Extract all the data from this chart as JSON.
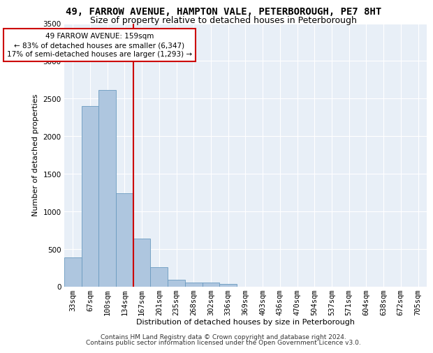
{
  "title_line1": "49, FARROW AVENUE, HAMPTON VALE, PETERBOROUGH, PE7 8HT",
  "title_line2": "Size of property relative to detached houses in Peterborough",
  "xlabel": "Distribution of detached houses by size in Peterborough",
  "ylabel": "Number of detached properties",
  "categories": [
    "33sqm",
    "67sqm",
    "100sqm",
    "134sqm",
    "167sqm",
    "201sqm",
    "235sqm",
    "268sqm",
    "302sqm",
    "336sqm",
    "369sqm",
    "403sqm",
    "436sqm",
    "470sqm",
    "504sqm",
    "537sqm",
    "571sqm",
    "604sqm",
    "638sqm",
    "672sqm",
    "705sqm"
  ],
  "values": [
    390,
    2400,
    2610,
    1240,
    640,
    255,
    95,
    60,
    55,
    35,
    0,
    0,
    0,
    0,
    0,
    0,
    0,
    0,
    0,
    0,
    0
  ],
  "bar_color": "#aec6df",
  "bar_edge_color": "#6a9abf",
  "vline_color": "#cc0000",
  "vline_pos": 3.5,
  "ylim": [
    0,
    3500
  ],
  "yticks": [
    0,
    500,
    1000,
    1500,
    2000,
    2500,
    3000,
    3500
  ],
  "annotation_text": "49 FARROW AVENUE: 159sqm\n← 83% of detached houses are smaller (6,347)\n17% of semi-detached houses are larger (1,293) →",
  "annotation_box_color": "#cc0000",
  "footer_line1": "Contains HM Land Registry data © Crown copyright and database right 2024.",
  "footer_line2": "Contains public sector information licensed under the Open Government Licence v3.0.",
  "background_color": "#e8eff7",
  "grid_color": "#ffffff",
  "title_fontsize": 10,
  "subtitle_fontsize": 9,
  "axis_label_fontsize": 8,
  "tick_fontsize": 7.5,
  "footer_fontsize": 6.5,
  "ylabel_fontsize": 8
}
